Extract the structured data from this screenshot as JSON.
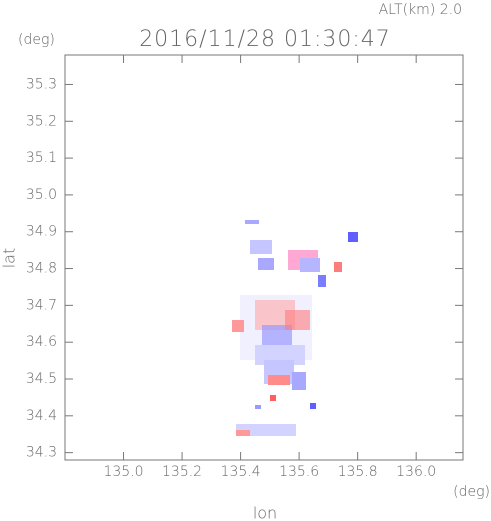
{
  "chart_data": {
    "type": "map",
    "annotation": "ALT(km) 2.0",
    "title": "2016/11/28 01:30:47",
    "y_unit": "(deg)",
    "x_unit": "(deg)",
    "ylabel": "lat",
    "xlabel": "lon",
    "xlim": [
      134.8,
      136.16
    ],
    "ylim": [
      34.28,
      35.38
    ],
    "xticks": [
      {
        "value": 135.0,
        "label": "135.0"
      },
      135.2,
      135.4,
      135.6,
      135.8,
      {
        "value": 136.0,
        "label": "136.0"
      }
    ],
    "yticks": [
      34.3,
      34.4,
      34.5,
      34.6,
      34.7,
      34.8,
      34.9,
      {
        "value": 35.0,
        "label": "35.0"
      },
      35.1,
      35.2,
      35.3
    ]
  }
}
